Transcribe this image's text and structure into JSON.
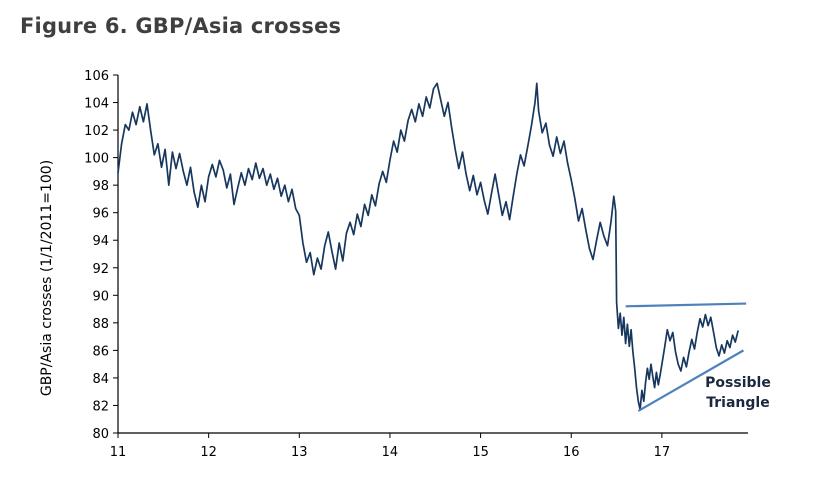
{
  "header": {
    "title": "Figure 6. GBP/Asia crosses",
    "title_color": "#3f3f3f"
  },
  "chart_data": {
    "type": "line",
    "title": "Figure 6. GBP/Asia crosses",
    "xlabel": "",
    "ylabel": "GBP/Asia crosses (1/1/2011=100)",
    "x_ticks": [
      11,
      12,
      13,
      14,
      15,
      16,
      17
    ],
    "y_ticks": [
      80,
      82,
      84,
      86,
      88,
      90,
      92,
      94,
      96,
      98,
      100,
      102,
      104,
      106
    ],
    "xlim": [
      11,
      17.95
    ],
    "ylim": [
      80,
      106
    ],
    "grid": false,
    "legend": "none",
    "line_color": "#17375e",
    "trendline_color": "#4f81bd",
    "axis_color": "#000000",
    "annotation": {
      "line1": "Possible",
      "line2": "Triangle",
      "color": "#1b2940"
    },
    "trendlines": [
      {
        "name": "upper",
        "x1": 16.6,
        "y1": 89.2,
        "x2": 17.93,
        "y2": 89.4
      },
      {
        "name": "lower",
        "x1": 16.74,
        "y1": 81.6,
        "x2": 17.9,
        "y2": 86.0
      }
    ],
    "series": [
      {
        "name": "gbp-asia-crosses",
        "points": [
          [
            11.0,
            98.9
          ],
          [
            11.04,
            101.0
          ],
          [
            11.08,
            102.4
          ],
          [
            11.12,
            102.0
          ],
          [
            11.16,
            103.3
          ],
          [
            11.2,
            102.4
          ],
          [
            11.24,
            103.7
          ],
          [
            11.28,
            102.6
          ],
          [
            11.32,
            103.9
          ],
          [
            11.36,
            102.0
          ],
          [
            11.4,
            100.2
          ],
          [
            11.44,
            101.0
          ],
          [
            11.48,
            99.3
          ],
          [
            11.52,
            100.6
          ],
          [
            11.56,
            98.0
          ],
          [
            11.6,
            100.4
          ],
          [
            11.64,
            99.2
          ],
          [
            11.68,
            100.3
          ],
          [
            11.72,
            99.0
          ],
          [
            11.76,
            98.0
          ],
          [
            11.8,
            99.3
          ],
          [
            11.84,
            97.5
          ],
          [
            11.88,
            96.4
          ],
          [
            11.92,
            98.0
          ],
          [
            11.96,
            96.8
          ],
          [
            12.0,
            98.6
          ],
          [
            12.04,
            99.5
          ],
          [
            12.08,
            98.6
          ],
          [
            12.12,
            99.8
          ],
          [
            12.16,
            99.1
          ],
          [
            12.2,
            97.8
          ],
          [
            12.24,
            98.8
          ],
          [
            12.28,
            96.6
          ],
          [
            12.32,
            97.8
          ],
          [
            12.36,
            98.9
          ],
          [
            12.4,
            98.0
          ],
          [
            12.44,
            99.2
          ],
          [
            12.48,
            98.4
          ],
          [
            12.52,
            99.6
          ],
          [
            12.56,
            98.5
          ],
          [
            12.6,
            99.2
          ],
          [
            12.64,
            98.0
          ],
          [
            12.68,
            98.8
          ],
          [
            12.72,
            97.7
          ],
          [
            12.76,
            98.5
          ],
          [
            12.8,
            97.2
          ],
          [
            12.84,
            98.0
          ],
          [
            12.88,
            96.8
          ],
          [
            12.92,
            97.7
          ],
          [
            12.96,
            96.3
          ],
          [
            13.0,
            95.8
          ],
          [
            13.04,
            93.8
          ],
          [
            13.08,
            92.4
          ],
          [
            13.12,
            93.1
          ],
          [
            13.16,
            91.5
          ],
          [
            13.2,
            92.7
          ],
          [
            13.24,
            91.9
          ],
          [
            13.28,
            93.6
          ],
          [
            13.32,
            94.6
          ],
          [
            13.36,
            93.2
          ],
          [
            13.4,
            91.9
          ],
          [
            13.44,
            93.8
          ],
          [
            13.48,
            92.5
          ],
          [
            13.52,
            94.5
          ],
          [
            13.56,
            95.3
          ],
          [
            13.6,
            94.4
          ],
          [
            13.64,
            95.9
          ],
          [
            13.68,
            95.0
          ],
          [
            13.72,
            96.6
          ],
          [
            13.76,
            95.8
          ],
          [
            13.8,
            97.3
          ],
          [
            13.84,
            96.5
          ],
          [
            13.88,
            98.1
          ],
          [
            13.92,
            99.0
          ],
          [
            13.96,
            98.2
          ],
          [
            14.0,
            99.8
          ],
          [
            14.04,
            101.2
          ],
          [
            14.08,
            100.4
          ],
          [
            14.12,
            102.0
          ],
          [
            14.16,
            101.2
          ],
          [
            14.2,
            102.7
          ],
          [
            14.24,
            103.5
          ],
          [
            14.28,
            102.6
          ],
          [
            14.32,
            103.9
          ],
          [
            14.36,
            103.0
          ],
          [
            14.4,
            104.4
          ],
          [
            14.44,
            103.6
          ],
          [
            14.48,
            105.0
          ],
          [
            14.52,
            105.4
          ],
          [
            14.56,
            104.2
          ],
          [
            14.6,
            103.0
          ],
          [
            14.64,
            104.0
          ],
          [
            14.68,
            102.2
          ],
          [
            14.72,
            100.6
          ],
          [
            14.76,
            99.2
          ],
          [
            14.8,
            100.4
          ],
          [
            14.84,
            98.8
          ],
          [
            14.88,
            97.6
          ],
          [
            14.92,
            98.7
          ],
          [
            14.96,
            97.3
          ],
          [
            15.0,
            98.2
          ],
          [
            15.04,
            96.9
          ],
          [
            15.08,
            95.9
          ],
          [
            15.12,
            97.4
          ],
          [
            15.16,
            98.8
          ],
          [
            15.2,
            97.3
          ],
          [
            15.24,
            95.8
          ],
          [
            15.28,
            96.8
          ],
          [
            15.32,
            95.5
          ],
          [
            15.36,
            97.2
          ],
          [
            15.4,
            98.8
          ],
          [
            15.44,
            100.2
          ],
          [
            15.48,
            99.4
          ],
          [
            15.52,
            100.8
          ],
          [
            15.56,
            102.3
          ],
          [
            15.6,
            104.0
          ],
          [
            15.62,
            105.4
          ],
          [
            15.64,
            103.4
          ],
          [
            15.68,
            101.8
          ],
          [
            15.72,
            102.5
          ],
          [
            15.76,
            100.9
          ],
          [
            15.8,
            100.1
          ],
          [
            15.84,
            101.5
          ],
          [
            15.88,
            100.3
          ],
          [
            15.92,
            101.2
          ],
          [
            15.96,
            99.6
          ],
          [
            16.0,
            98.4
          ],
          [
            16.04,
            97.0
          ],
          [
            16.08,
            95.4
          ],
          [
            16.12,
            96.3
          ],
          [
            16.16,
            94.8
          ],
          [
            16.2,
            93.4
          ],
          [
            16.24,
            92.6
          ],
          [
            16.28,
            94.0
          ],
          [
            16.32,
            95.3
          ],
          [
            16.36,
            94.3
          ],
          [
            16.4,
            93.6
          ],
          [
            16.44,
            95.4
          ],
          [
            16.47,
            97.2
          ],
          [
            16.49,
            96.1
          ],
          [
            16.5,
            89.5
          ],
          [
            16.52,
            87.6
          ],
          [
            16.54,
            88.7
          ],
          [
            16.56,
            87.1
          ],
          [
            16.58,
            88.4
          ],
          [
            16.6,
            86.5
          ],
          [
            16.62,
            87.9
          ],
          [
            16.64,
            86.3
          ],
          [
            16.66,
            87.5
          ],
          [
            16.68,
            85.9
          ],
          [
            16.7,
            84.7
          ],
          [
            16.72,
            83.3
          ],
          [
            16.74,
            82.3
          ],
          [
            16.76,
            81.7
          ],
          [
            16.78,
            83.1
          ],
          [
            16.8,
            82.3
          ],
          [
            16.82,
            83.7
          ],
          [
            16.84,
            84.7
          ],
          [
            16.86,
            83.9
          ],
          [
            16.88,
            85.0
          ],
          [
            16.9,
            84.1
          ],
          [
            16.92,
            83.3
          ],
          [
            16.94,
            84.4
          ],
          [
            16.96,
            83.5
          ],
          [
            16.98,
            84.2
          ],
          [
            17.0,
            85.0
          ],
          [
            17.03,
            86.2
          ],
          [
            17.06,
            87.5
          ],
          [
            17.09,
            86.7
          ],
          [
            17.12,
            87.3
          ],
          [
            17.15,
            85.9
          ],
          [
            17.18,
            85.0
          ],
          [
            17.21,
            84.5
          ],
          [
            17.24,
            85.5
          ],
          [
            17.27,
            84.8
          ],
          [
            17.3,
            85.9
          ],
          [
            17.33,
            86.8
          ],
          [
            17.36,
            86.1
          ],
          [
            17.39,
            87.3
          ],
          [
            17.42,
            88.3
          ],
          [
            17.45,
            87.7
          ],
          [
            17.48,
            88.6
          ],
          [
            17.51,
            87.8
          ],
          [
            17.54,
            88.4
          ],
          [
            17.57,
            87.3
          ],
          [
            17.6,
            86.2
          ],
          [
            17.63,
            85.6
          ],
          [
            17.66,
            86.4
          ],
          [
            17.69,
            85.8
          ],
          [
            17.72,
            86.7
          ],
          [
            17.75,
            86.2
          ],
          [
            17.78,
            87.1
          ],
          [
            17.81,
            86.6
          ],
          [
            17.84,
            87.4
          ]
        ]
      }
    ]
  }
}
